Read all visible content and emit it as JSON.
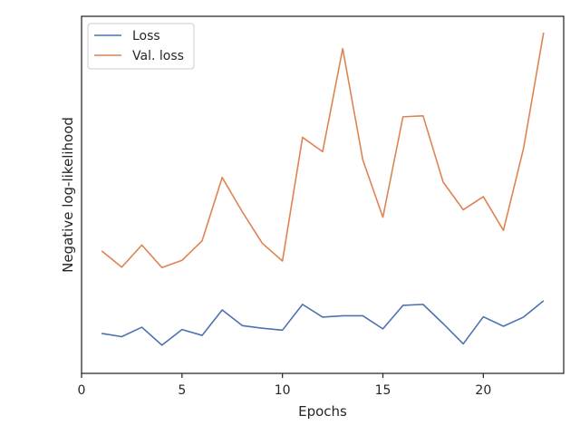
{
  "chart_data": {
    "type": "line",
    "title": "",
    "xlabel": "Epochs",
    "ylabel": "Negative log-likelihood",
    "xlim": [
      0,
      24
    ],
    "xticks": [
      0,
      5,
      10,
      15,
      20
    ],
    "xtick_labels": [
      "0",
      "5",
      "10",
      "15",
      "20"
    ],
    "ylim": [
      0,
      1
    ],
    "y_ticks_shown": false,
    "grid": false,
    "legend_position": "top-left",
    "x": [
      1,
      2,
      3,
      4,
      5,
      6,
      7,
      8,
      9,
      10,
      11,
      12,
      13,
      14,
      15,
      16,
      17,
      18,
      19,
      20,
      21,
      22,
      23
    ],
    "series": [
      {
        "name": "Loss",
        "color": "#4c72b0",
        "values": [
          0.078,
          0.068,
          0.097,
          0.042,
          0.09,
          0.072,
          0.15,
          0.102,
          0.094,
          0.088,
          0.167,
          0.128,
          0.132,
          0.132,
          0.092,
          0.164,
          0.167,
          0.108,
          0.046,
          0.129,
          0.1,
          0.128,
          0.178
        ]
      },
      {
        "name": "Val. loss",
        "color": "#dd8452",
        "values": [
          0.331,
          0.281,
          0.349,
          0.28,
          0.302,
          0.362,
          0.556,
          0.451,
          0.354,
          0.3,
          0.679,
          0.635,
          0.951,
          0.61,
          0.434,
          0.742,
          0.745,
          0.542,
          0.457,
          0.497,
          0.394,
          0.645,
          1.0
        ]
      }
    ]
  }
}
